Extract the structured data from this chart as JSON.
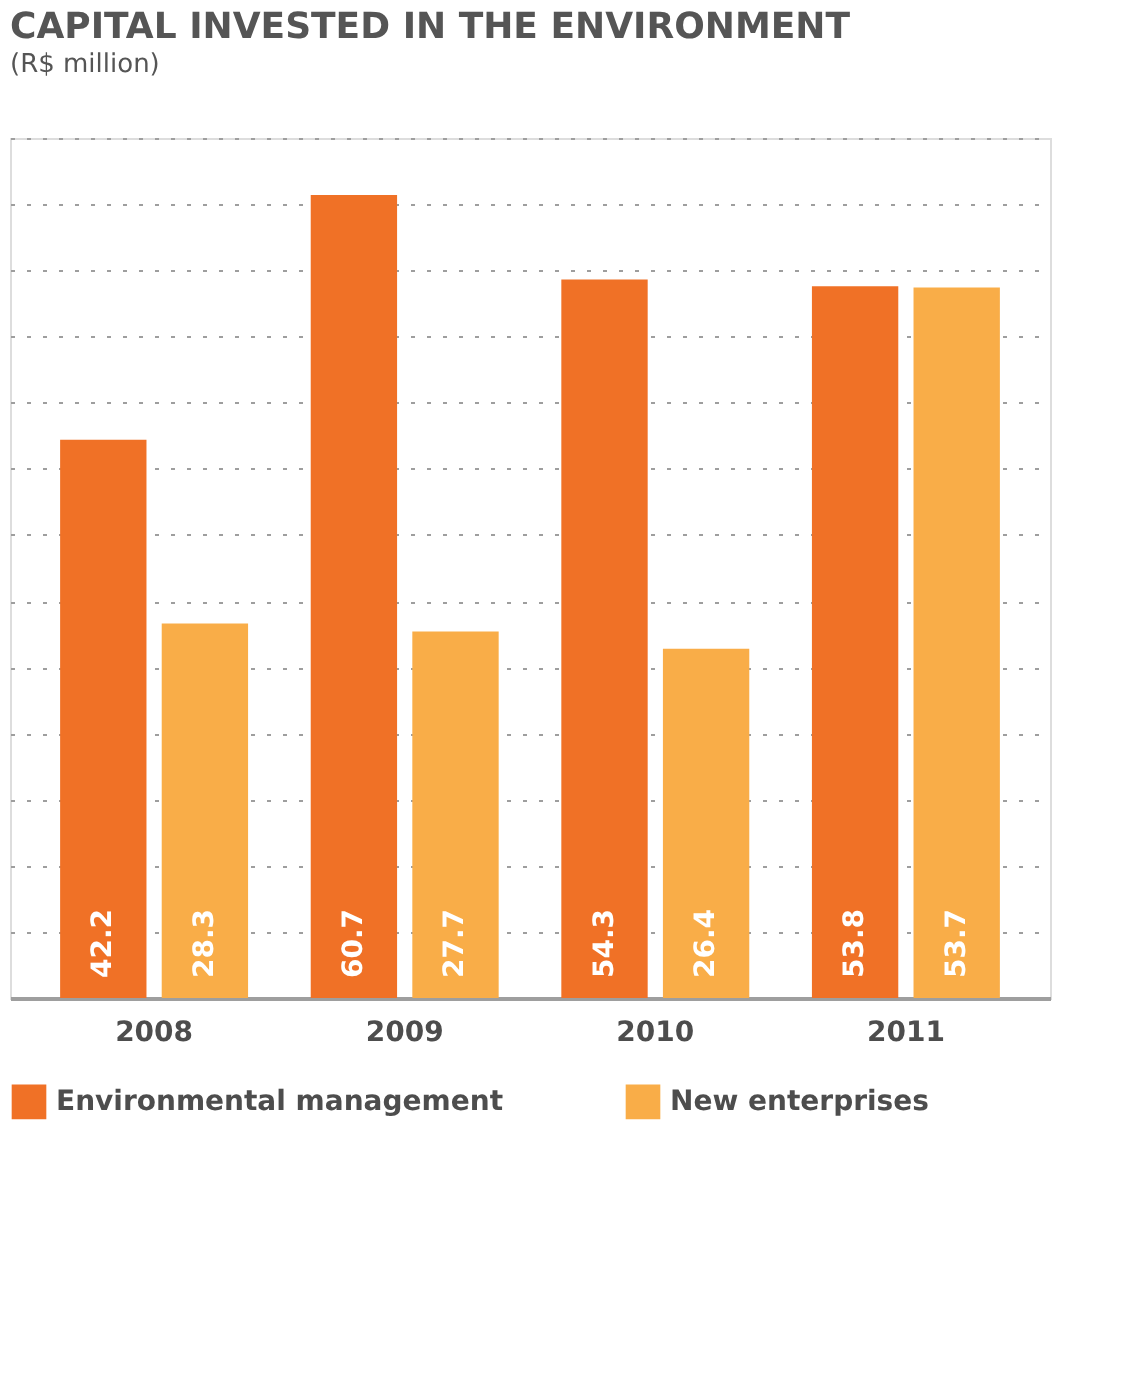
{
  "chart_data": {
    "type": "bar",
    "title": "CAPITAL INVESTED IN THE ENVIRONMENT",
    "subtitle": "(R$ million)",
    "categories": [
      "2008",
      "2009",
      "2010",
      "2011"
    ],
    "series": [
      {
        "name": "Environmental management",
        "color": "#f07126",
        "values": [
          42.2,
          60.7,
          54.3,
          53.8
        ]
      },
      {
        "name": "New enterprises",
        "color": "#f9ad48",
        "values": [
          28.3,
          27.7,
          26.4,
          53.7
        ]
      }
    ],
    "data_labels": true,
    "grid": "y",
    "legend": "bottom"
  }
}
